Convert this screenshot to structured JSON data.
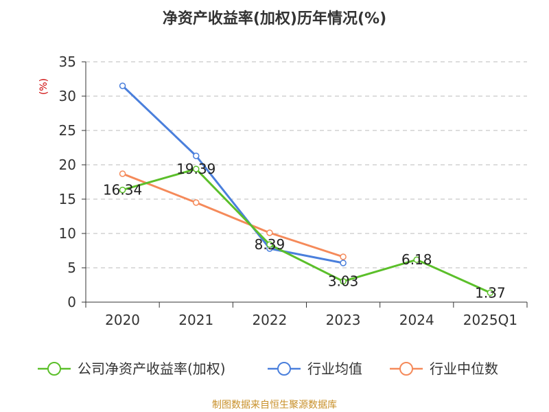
{
  "chart_data": {
    "type": "line",
    "title": "净资产收益率(加权)历年情况(%)",
    "ylabel": "(%)",
    "xlabel": "",
    "categories": [
      "2020",
      "2021",
      "2022",
      "2023",
      "2024",
      "2025Q1"
    ],
    "ylim": [
      0,
      35
    ],
    "yticks": [
      0,
      5,
      10,
      15,
      20,
      25,
      30,
      35
    ],
    "grid": true,
    "legend_position": "bottom",
    "series": [
      {
        "name": "公司净资产收益率(加权)",
        "color": "#5bbf2a",
        "values": [
          16.34,
          19.39,
          8.39,
          3.03,
          6.18,
          1.37
        ],
        "labels": [
          "16.34",
          "19.39",
          "8.39",
          "3.03",
          "6.18",
          "1.37"
        ]
      },
      {
        "name": "行业均值",
        "color": "#4a7fdc",
        "values": [
          31.5,
          21.3,
          7.8,
          5.7,
          null,
          null
        ]
      },
      {
        "name": "行业中位数",
        "color": "#f58a5a",
        "values": [
          18.7,
          14.5,
          10.1,
          6.6,
          null,
          null
        ]
      }
    ]
  },
  "colors": {
    "ylabel": "#cc0000",
    "source": "#c8902a",
    "axis": "#333333",
    "grid": "#bbbbbb"
  },
  "source_text": "制图数据来自恒生聚源数据库"
}
